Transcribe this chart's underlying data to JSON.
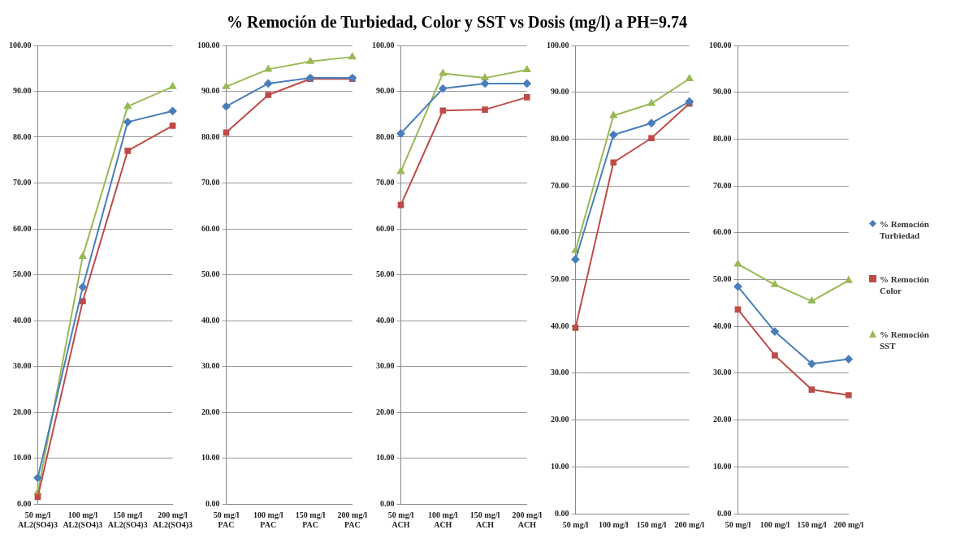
{
  "chart_data": [
    {
      "type": "line",
      "categories": [
        "50 mg/l\nAL2(SO4)3",
        "100 mg/l\nAL2(SO4)3",
        "150 mg/l\nAL2(SO4)3",
        "200 mg/l\nAL2(SO4)3"
      ],
      "ylim": [
        0,
        100
      ],
      "yticks": [
        {
          "value": 0,
          "label": "0.00"
        },
        {
          "value": 10,
          "label": "10.00"
        },
        {
          "value": 20,
          "label": "20.00"
        },
        {
          "value": 30,
          "label": "30.00"
        },
        {
          "value": 40,
          "label": "40.00"
        },
        {
          "value": 50,
          "label": "50.00"
        },
        {
          "value": 60,
          "label": "60.00"
        },
        {
          "value": 70,
          "label": "70.00"
        },
        {
          "value": 80,
          "label": "80.00"
        },
        {
          "value": 90,
          "label": "90.00"
        },
        {
          "value": 100,
          "label": "100.00"
        }
      ],
      "grid": "y",
      "legend": false,
      "series": [
        {
          "color": "#4a7ebb",
          "marker": "diamond",
          "values": [
            5.7,
            47.3,
            83.3,
            85.7
          ]
        },
        {
          "color": "#be4b48",
          "marker": "square",
          "values": [
            1.5,
            44.2,
            77.0,
            82.5
          ]
        },
        {
          "color": "#98b954",
          "marker": "triangle",
          "values": [
            2.5,
            54.0,
            86.7,
            91.0
          ]
        }
      ]
    },
    {
      "type": "line",
      "categories": [
        "50 mg/l\nPAC",
        "100 mg/l\nPAC",
        "150 mg/l\nPAC",
        "200 mg/l\nPAC"
      ],
      "ylim": [
        0,
        100
      ],
      "yticks": [
        {
          "value": 0,
          "label": "0.00"
        },
        {
          "value": 10,
          "label": "10.00"
        },
        {
          "value": 20,
          "label": "20.00"
        },
        {
          "value": 30,
          "label": "30.00"
        },
        {
          "value": 40,
          "label": "40.00"
        },
        {
          "value": 50,
          "label": "50.00"
        },
        {
          "value": 60,
          "label": "60.00"
        },
        {
          "value": 70,
          "label": "70.00"
        },
        {
          "value": 80,
          "label": "80.00"
        },
        {
          "value": 90,
          "label": "90.00"
        },
        {
          "value": 100,
          "label": "100.00"
        }
      ],
      "grid": "y",
      "legend": false,
      "series": [
        {
          "color": "#4a7ebb",
          "marker": "diamond",
          "values": [
            86.7,
            91.7,
            92.9,
            92.9
          ]
        },
        {
          "color": "#be4b48",
          "marker": "square",
          "values": [
            81.0,
            89.2,
            92.7,
            92.7
          ]
        },
        {
          "color": "#98b954",
          "marker": "triangle",
          "values": [
            91.0,
            94.8,
            96.5,
            97.5
          ]
        }
      ]
    },
    {
      "type": "line",
      "title": "% Remoción de Turbiedad, Color  y SST vs Dosis (mg/l) a PH=9.74",
      "categories": [
        "50 mg/l\nACH",
        "100 mg/l\nACH",
        "150 mg/l\nACH",
        "200 mg/l\nACH"
      ],
      "ylim": [
        0,
        100
      ],
      "yticks": [
        {
          "value": 0,
          "label": "0.00"
        },
        {
          "value": 10,
          "label": "10.00"
        },
        {
          "value": 20,
          "label": "20.00"
        },
        {
          "value": 30,
          "label": "30.00"
        },
        {
          "value": 40,
          "label": "40.00"
        },
        {
          "value": 50,
          "label": "50.00"
        },
        {
          "value": 60,
          "label": "60.00"
        },
        {
          "value": 70,
          "label": "70.00"
        },
        {
          "value": 80,
          "label": "80.00"
        },
        {
          "value": 90,
          "label": "90.00"
        },
        {
          "value": 100,
          "label": "100.00"
        }
      ],
      "grid": "y",
      "legend": false,
      "series": [
        {
          "color": "#4a7ebb",
          "marker": "diamond",
          "values": [
            80.8,
            90.6,
            91.7,
            91.7
          ]
        },
        {
          "color": "#be4b48",
          "marker": "square",
          "values": [
            65.2,
            85.8,
            86.0,
            88.7
          ]
        },
        {
          "color": "#98b954",
          "marker": "triangle",
          "values": [
            72.5,
            93.9,
            92.9,
            94.7
          ]
        }
      ]
    },
    {
      "type": "line",
      "categories": [
        "50 mg/l",
        "100 mg/l",
        "150 mg/l",
        "200 mg/l"
      ],
      "ylim": [
        0,
        100
      ],
      "yticks": [
        {
          "value": 0,
          "label": "0.00"
        },
        {
          "value": 10,
          "label": "10.00"
        },
        {
          "value": 20,
          "label": "20.00"
        },
        {
          "value": 30,
          "label": "30.00"
        },
        {
          "value": 40,
          "label": "40.00"
        },
        {
          "value": 50,
          "label": "50.00"
        },
        {
          "value": 60,
          "label": "60.00"
        },
        {
          "value": 70,
          "label": "70.00"
        },
        {
          "value": 80,
          "label": "80.00"
        },
        {
          "value": 90,
          "label": "90.00"
        },
        {
          "value": 100,
          "label": "100.00"
        }
      ],
      "grid": "y",
      "legend": false,
      "series": [
        {
          "color": "#4a7ebb",
          "marker": "diamond",
          "values": [
            54.3,
            80.9,
            83.4,
            88.0
          ]
        },
        {
          "color": "#be4b48",
          "marker": "square",
          "values": [
            39.7,
            75.0,
            80.2,
            87.6
          ]
        },
        {
          "color": "#98b954",
          "marker": "triangle",
          "values": [
            56.2,
            85.0,
            87.6,
            92.9
          ]
        }
      ]
    },
    {
      "type": "line",
      "categories": [
        "50 mg/l",
        "100 mg/l",
        "150 mg/l",
        "200 mg/l"
      ],
      "ylim": [
        0,
        100
      ],
      "yticks": [
        {
          "value": 0,
          "label": "0.00"
        },
        {
          "value": 10,
          "label": "10.00"
        },
        {
          "value": 20,
          "label": "20.00"
        },
        {
          "value": 30,
          "label": "30.00"
        },
        {
          "value": 40,
          "label": "40.00"
        },
        {
          "value": 50,
          "label": "50.00"
        },
        {
          "value": 60,
          "label": "60.00"
        },
        {
          "value": 70,
          "label": "70.00"
        },
        {
          "value": 80,
          "label": "80.00"
        },
        {
          "value": 90,
          "label": "90.00"
        },
        {
          "value": 100,
          "label": "100.00"
        }
      ],
      "grid": "y",
      "legend": "right",
      "series": [
        {
          "name": "% Remoción Turbiedad",
          "color": "#4a7ebb",
          "marker": "diamond",
          "values": [
            48.5,
            38.9,
            32.0,
            33.0
          ]
        },
        {
          "name": "% Remoción Color",
          "color": "#be4b48",
          "marker": "square",
          "values": [
            43.6,
            33.8,
            26.5,
            25.3
          ]
        },
        {
          "name": "% Remoción SST",
          "color": "#98b954",
          "marker": "triangle",
          "values": [
            53.3,
            48.9,
            45.4,
            49.8
          ]
        }
      ]
    }
  ]
}
